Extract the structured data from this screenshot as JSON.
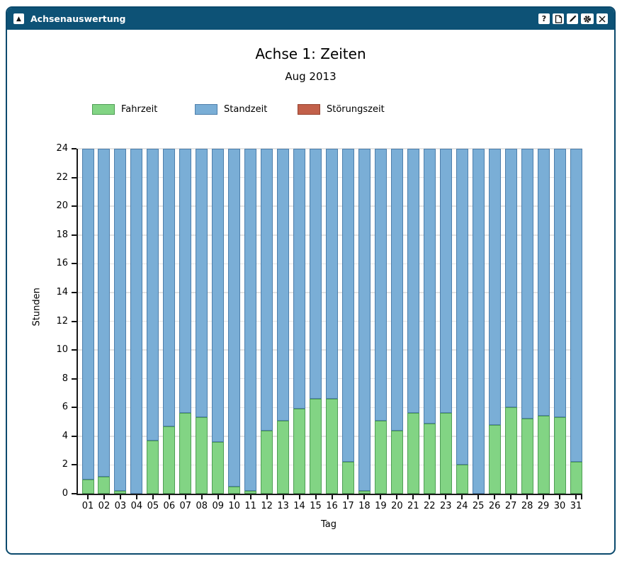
{
  "window": {
    "title": "Achsenauswertung",
    "icons": {
      "collapse": "triangle-up",
      "help": "question-mark",
      "document": "page",
      "edit": "pencil",
      "settings": "gear",
      "close": "x"
    },
    "buttons": {
      "help_label": "?",
      "collapse_glyph": "▲"
    }
  },
  "chart": {
    "title": "Achse 1: Zeiten",
    "subtitle": "Aug 2013",
    "ylabel": "Stunden",
    "xlabel": "Tag",
    "yticks": [
      0,
      2,
      4,
      6,
      8,
      10,
      12,
      14,
      16,
      18,
      20,
      22,
      24
    ],
    "legend": [
      {
        "label": "Fahrzeit",
        "color": "#82d484",
        "border": "#4f9e55"
      },
      {
        "label": "Standzeit",
        "color": "#7aaed6",
        "border": "#4e7fab"
      },
      {
        "label": "Störungszeit",
        "color": "#c2604a",
        "border": "#96432f"
      }
    ]
  },
  "chart_data": {
    "type": "bar",
    "stacked": true,
    "title": "Achse 1: Zeiten",
    "subtitle": "Aug 2013",
    "xlabel": "Tag",
    "ylabel": "Stunden",
    "ylim": [
      0,
      24
    ],
    "grid": true,
    "legend_position": "top-left-row",
    "categories": [
      "01",
      "02",
      "03",
      "04",
      "05",
      "06",
      "07",
      "08",
      "09",
      "10",
      "11",
      "12",
      "13",
      "14",
      "15",
      "16",
      "17",
      "18",
      "19",
      "20",
      "21",
      "22",
      "23",
      "24",
      "25",
      "26",
      "27",
      "28",
      "29",
      "30",
      "31"
    ],
    "series": [
      {
        "name": "Fahrzeit",
        "color": "#82d484",
        "edge": "#4f9e55",
        "values": [
          1.0,
          1.2,
          0.2,
          0,
          3.7,
          4.7,
          5.6,
          5.3,
          3.6,
          0.5,
          0.2,
          4.4,
          5.1,
          5.9,
          6.6,
          6.6,
          2.2,
          0.2,
          5.1,
          4.4,
          5.6,
          4.9,
          5.6,
          2.0,
          0,
          4.8,
          6.0,
          5.2,
          5.4,
          5.3,
          2.2
        ]
      },
      {
        "name": "Standzeit",
        "color": "#7aaed6",
        "edge": "#4e7fab",
        "values": [
          23.0,
          22.8,
          23.8,
          24,
          20.3,
          19.3,
          18.4,
          18.7,
          20.4,
          23.5,
          23.8,
          19.6,
          18.9,
          18.1,
          17.4,
          17.4,
          21.8,
          23.8,
          18.9,
          19.6,
          18.4,
          19.1,
          18.4,
          22.0,
          24,
          19.2,
          18.0,
          18.8,
          18.6,
          18.7,
          21.8
        ]
      },
      {
        "name": "Störungszeit",
        "color": "#c2604a",
        "edge": "#96432f",
        "values": [
          0,
          0,
          0,
          0,
          0,
          0,
          0,
          0,
          0,
          0,
          0,
          0,
          0,
          0,
          0,
          0,
          0,
          0,
          0,
          0,
          0,
          0,
          0,
          0,
          0,
          0,
          0,
          0,
          0,
          0,
          0
        ]
      }
    ]
  }
}
